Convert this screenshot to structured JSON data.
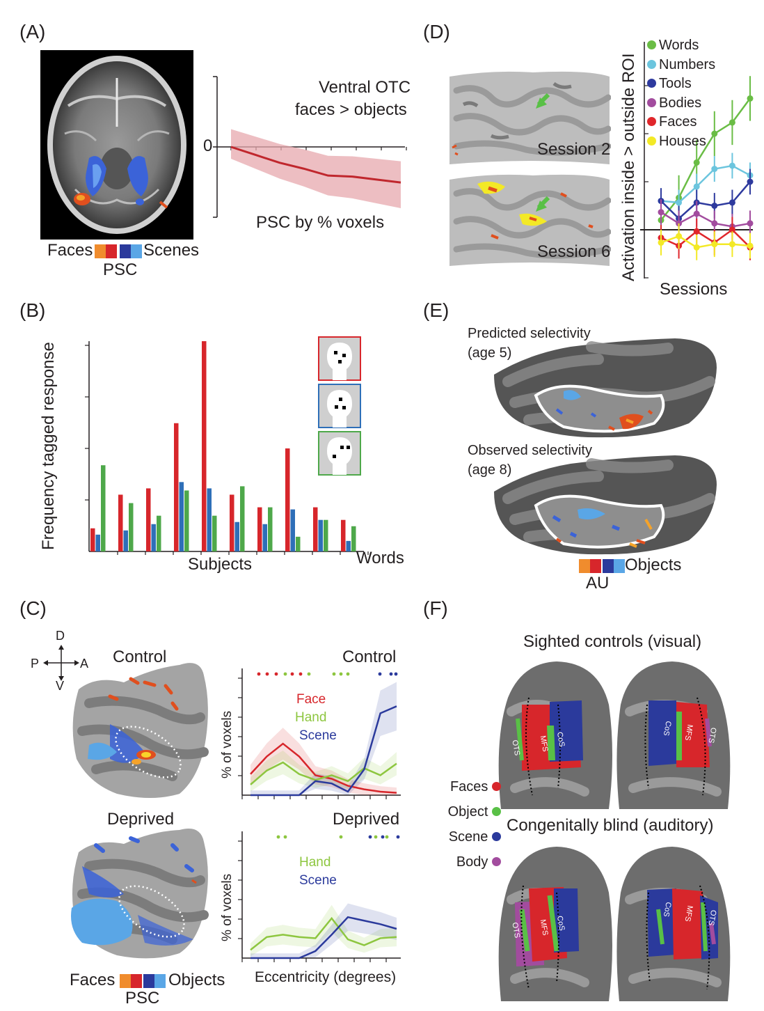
{
  "panels": {
    "A": {
      "letter": "(A)",
      "graph_title_line1": "Ventral OTC",
      "graph_title_line2": "faces > objects",
      "zero_label": "0",
      "xlabel": "PSC by % voxels",
      "legend_left": "Faces",
      "legend_right": "Scenes",
      "legend_unit": "PSC"
    },
    "B": {
      "letter": "(B)",
      "ylabel": "Frequency tagged response",
      "xlabel": "Subjects",
      "xlabel_right": "Words"
    },
    "C": {
      "letter": "(C)",
      "orient_d": "D",
      "orient_v": "V",
      "orient_p": "P",
      "orient_a": "A",
      "brain_top_title": "Control",
      "brain_bottom_title": "Deprived",
      "plot_top_title": "Control",
      "plot_bottom_title": "Deprived",
      "ylabel": "% of voxels",
      "xlabel": "Eccentricity (degrees)",
      "top_series": [
        "Face",
        "Hand",
        "Scene"
      ],
      "bottom_series": [
        "Hand",
        "Scene"
      ],
      "legend_left": "Faces",
      "legend_right": "Objects",
      "legend_unit": "PSC"
    },
    "D": {
      "letter": "(D)",
      "session_top": "Session 2",
      "session_bottom": "Session 6",
      "ylabel": "Activation inside > outside ROI",
      "xlabel": "Sessions",
      "legend": [
        "Words",
        "Numbers",
        "Tools",
        "Bodies",
        "Faces",
        "Houses"
      ]
    },
    "E": {
      "letter": "(E)",
      "pred_line1": "Predicted selectivity",
      "pred_line2": "(age 5)",
      "obs_line1": "Observed selectivity",
      "obs_line2": "(age 8)",
      "legend_right": "Objects",
      "legend_unit": "AU"
    },
    "F": {
      "letter": "(F)",
      "top_title": "Sighted controls (visual)",
      "bottom_title": "Congenitally blind (auditory)",
      "legend": [
        "Faces",
        "Object",
        "Scene",
        "Body"
      ],
      "sulci": [
        "OTS",
        "MFS",
        "CoS"
      ]
    }
  },
  "colors": {
    "face": "#d7262b",
    "hand": "#8dc63f",
    "scene": "#2b3a9c",
    "words": "#6abd45",
    "numbers": "#6cc5de",
    "tools": "#2e3a9e",
    "bodies": "#a24c9e",
    "faces": "#e0262b",
    "houses": "#f3e926",
    "bar_red": "#d7262b",
    "bar_blue": "#2e6fb8",
    "bar_green": "#4ea84a"
  },
  "chart_data": [
    {
      "id": "A-psc",
      "type": "line",
      "title": "Ventral OTC faces > objects",
      "xlabel": "PSC by % voxels",
      "x": [
        0,
        1,
        2,
        3,
        4,
        5,
        6,
        7
      ],
      "series": [
        {
          "values": [
            0.0,
            -0.08,
            -0.16,
            -0.22,
            -0.29,
            -0.3,
            -0.33,
            -0.36
          ]
        }
      ],
      "ylim": [
        -0.7,
        0.7
      ]
    },
    {
      "id": "B-bars",
      "type": "bar",
      "ylabel": "Frequency tagged response",
      "xlabel": "Subjects",
      "categories": [
        "1",
        "2",
        "3",
        "4",
        "5",
        "6",
        "7",
        "8",
        "9",
        "10"
      ],
      "series": [
        {
          "values": [
            0.11,
            0.27,
            0.3,
            0.61,
            1.0,
            0.27,
            0.21,
            0.49,
            0.21,
            0.15
          ]
        },
        {
          "values": [
            0.08,
            0.1,
            0.13,
            0.33,
            0.3,
            0.14,
            0.13,
            0.2,
            0.15,
            0.05
          ]
        },
        {
          "values": [
            0.41,
            0.23,
            0.17,
            0.29,
            0.17,
            0.31,
            0.21,
            0.07,
            0.15,
            0.12
          ]
        }
      ],
      "ylim": [
        0,
        1
      ]
    },
    {
      "id": "C-control",
      "type": "line",
      "title": "Control",
      "ylabel": "% of voxels",
      "x": [
        0,
        1,
        2,
        3,
        4,
        5,
        6,
        7,
        8,
        9
      ],
      "series": [
        {
          "name": "Face",
          "values": [
            0.18,
            0.33,
            0.44,
            0.33,
            0.17,
            0.14,
            0.08,
            0.05,
            0.03,
            0.02
          ]
        },
        {
          "name": "Hand",
          "values": [
            0.09,
            0.21,
            0.28,
            0.18,
            0.13,
            0.17,
            0.12,
            0.23,
            0.17,
            0.27
          ]
        },
        {
          "name": "Scene",
          "values": [
            0.0,
            0.0,
            0.0,
            0.0,
            0.12,
            0.1,
            0.03,
            0.22,
            0.7,
            0.76
          ]
        }
      ],
      "ylim": [
        0,
        1
      ]
    },
    {
      "id": "C-deprived",
      "type": "line",
      "title": "Deprived",
      "ylabel": "% of voxels",
      "xlabel": "Eccentricity (degrees)",
      "x": [
        0,
        1,
        2,
        3,
        4,
        5,
        6,
        7,
        8,
        9
      ],
      "series": [
        {
          "name": "Hand",
          "values": [
            0.07,
            0.18,
            0.2,
            0.18,
            0.17,
            0.34,
            0.16,
            0.11,
            0.17,
            0.18
          ]
        },
        {
          "name": "Scene",
          "values": [
            0.0,
            0.0,
            0.0,
            0.0,
            0.06,
            0.2,
            0.35,
            0.32,
            0.29,
            0.25
          ]
        }
      ],
      "ylim": [
        0,
        1
      ]
    },
    {
      "id": "D-sessions",
      "type": "line",
      "ylabel": "Activation inside > outside ROI",
      "xlabel": "Sessions",
      "x": [
        1,
        2,
        3,
        4,
        5,
        6
      ],
      "series": [
        {
          "name": "Words",
          "values": [
            0.06,
            0.2,
            0.42,
            0.6,
            0.67,
            0.82
          ]
        },
        {
          "name": "Numbers",
          "values": [
            0.18,
            0.17,
            0.27,
            0.38,
            0.4,
            0.34
          ]
        },
        {
          "name": "Tools",
          "values": [
            0.18,
            0.07,
            0.17,
            0.15,
            0.17,
            0.3
          ]
        },
        {
          "name": "Bodies",
          "values": [
            0.11,
            0.04,
            0.1,
            0.04,
            0.02,
            0.04
          ]
        },
        {
          "name": "Faces",
          "values": [
            -0.05,
            -0.1,
            -0.01,
            -0.08,
            0.0,
            -0.11
          ]
        },
        {
          "name": "Houses",
          "values": [
            -0.08,
            -0.04,
            -0.11,
            -0.09,
            -0.09,
            -0.1
          ]
        }
      ],
      "ylim": [
        -0.3,
        1.0
      ]
    }
  ]
}
